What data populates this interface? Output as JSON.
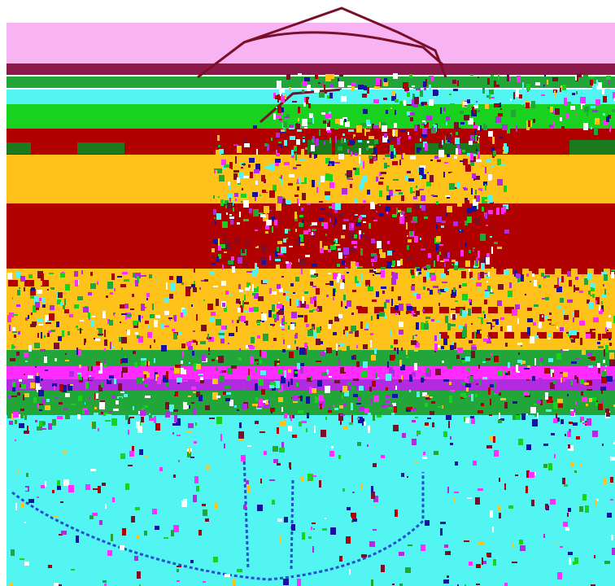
{
  "image": {
    "kind": "glitched-photograph",
    "subject_icon": "vehicle-icon",
    "palette": {
      "sky_pink": "#f7b3f2",
      "maroon": "#8b1a4a",
      "green": "#22a63a",
      "bright_green": "#19d21f",
      "cyan": "#53f5f2",
      "dark_red": "#b00000",
      "amber": "#ffc21a",
      "magenta": "#ff2bff",
      "purple": "#b22be0",
      "navy": "#1414a0",
      "outline": "#7a0f2a",
      "white": "#ffffff"
    }
  }
}
